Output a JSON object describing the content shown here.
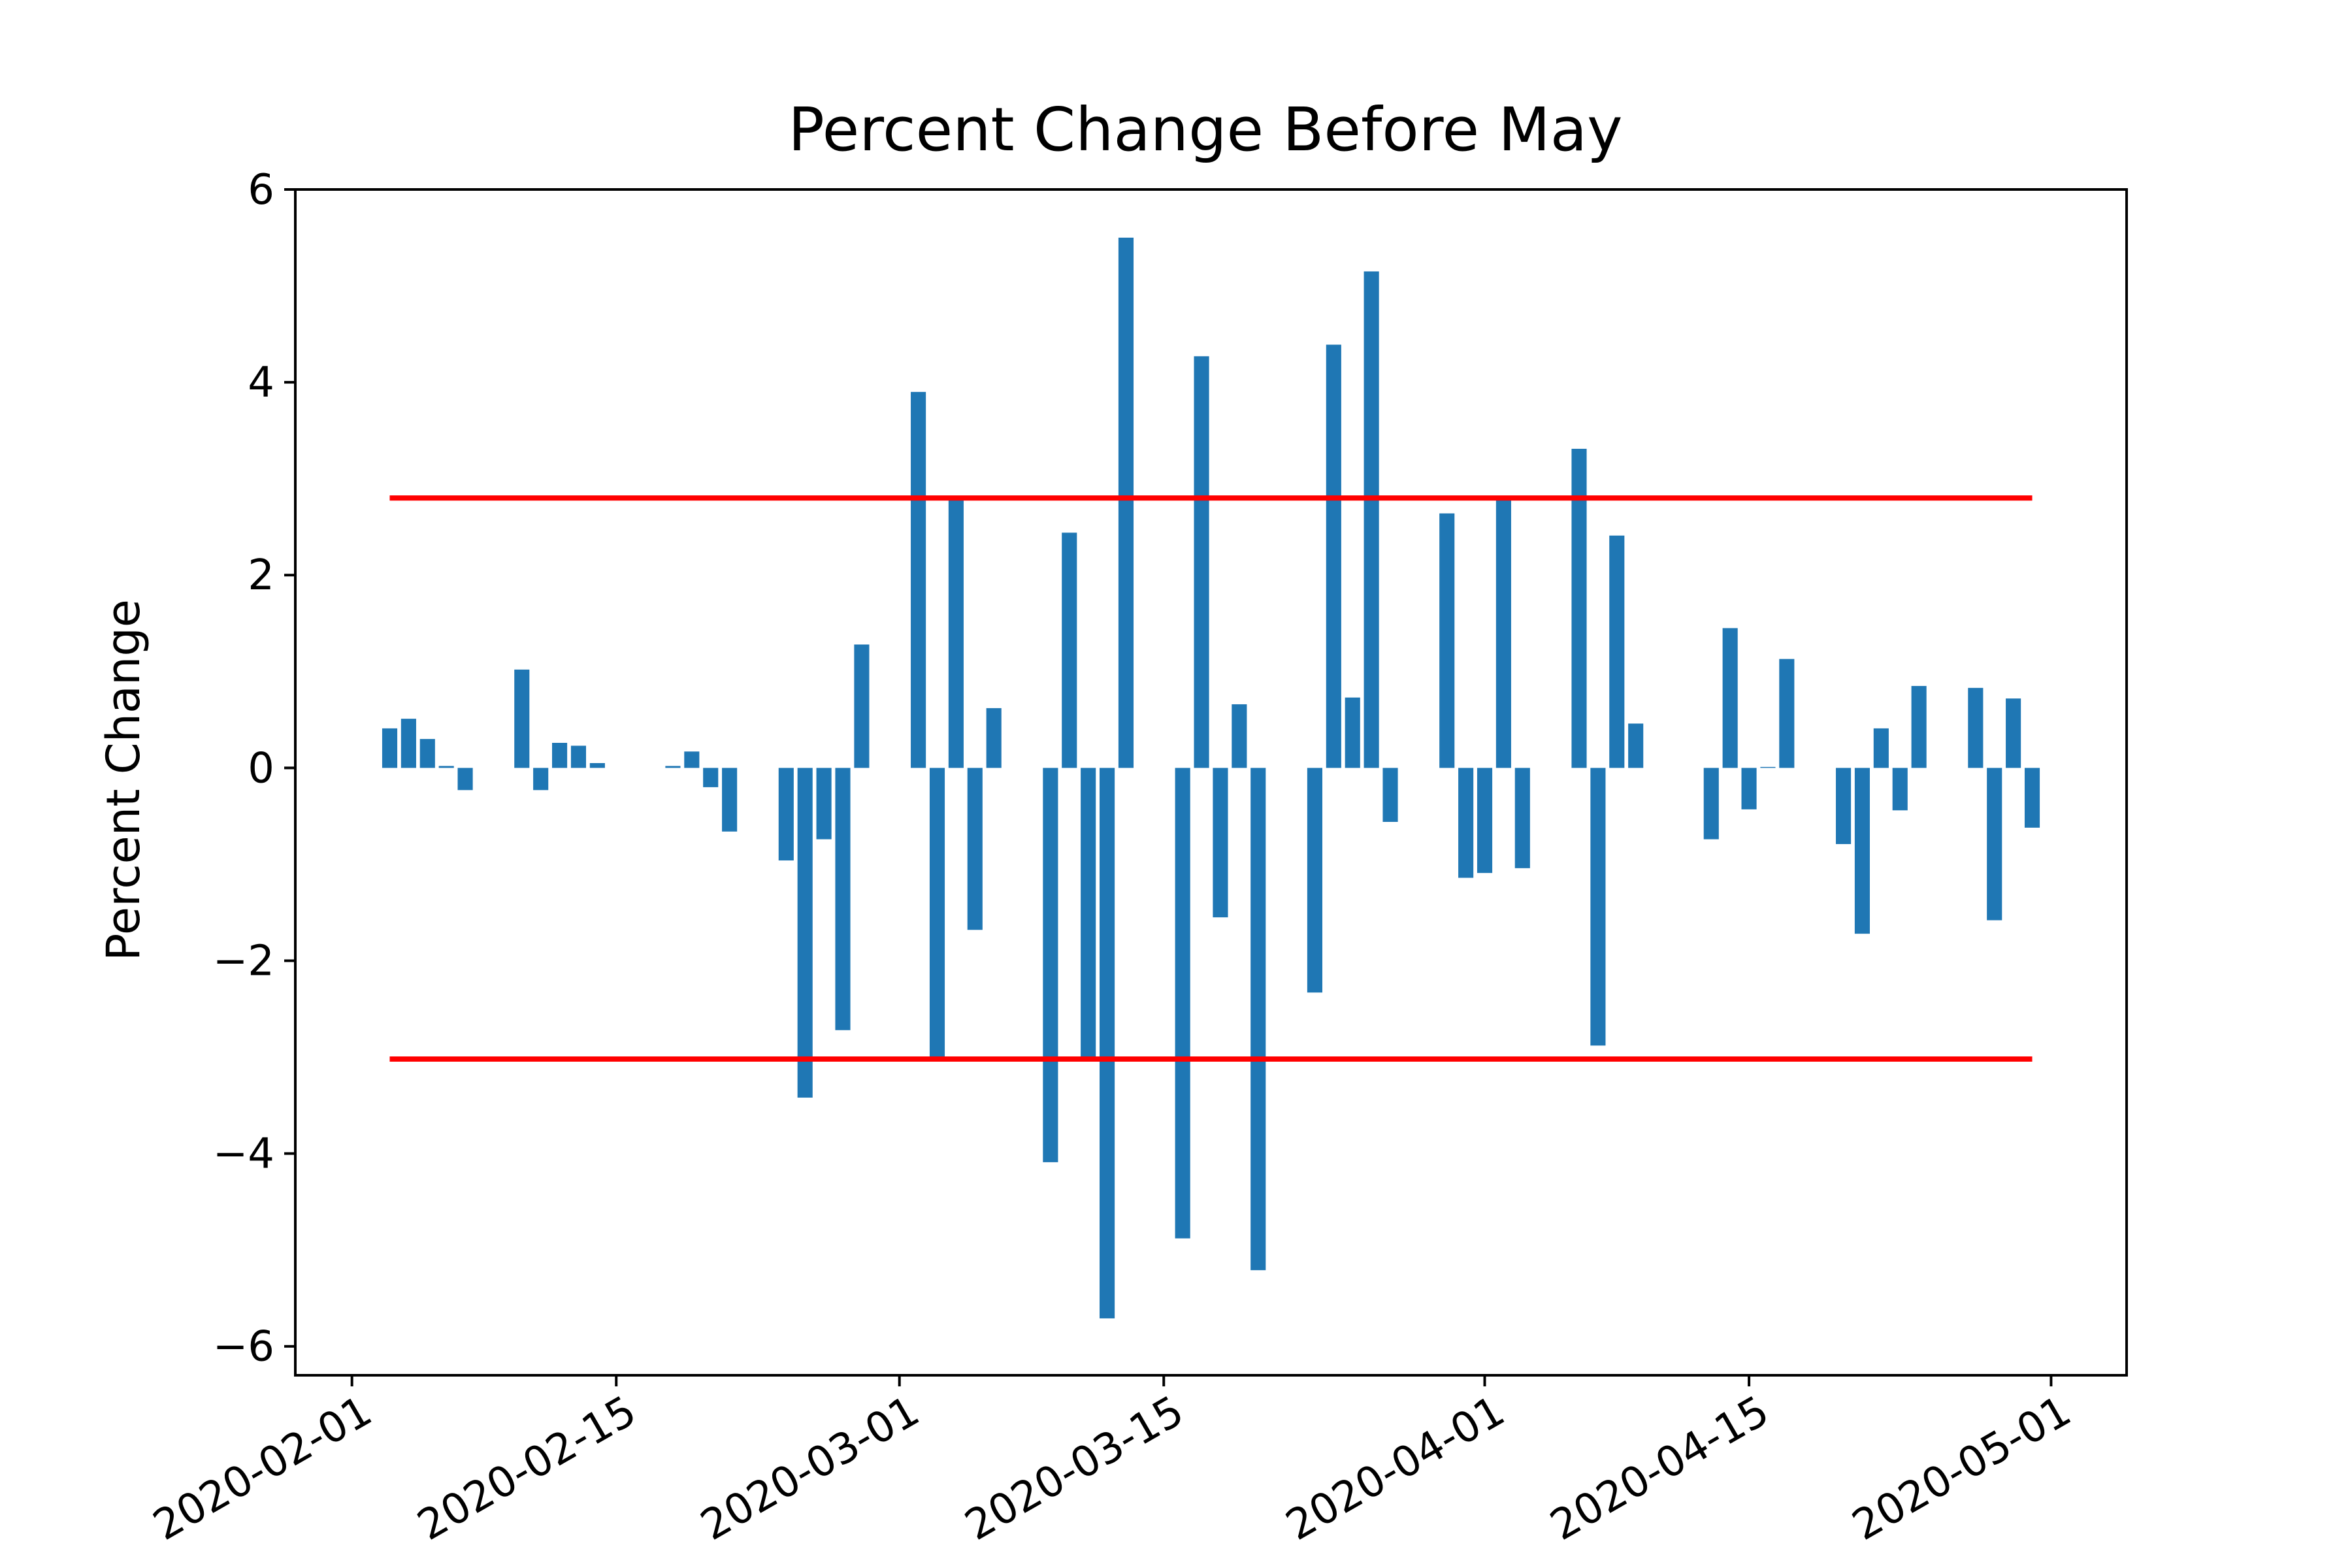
{
  "chart_data": {
    "type": "bar",
    "title": "Percent Change Before May",
    "xlabel": "",
    "ylabel": "Percent Change",
    "x_axis_type": "date",
    "xlim": [
      "2020-01-29",
      "2020-05-05"
    ],
    "ylim": [
      -6.3,
      6.0
    ],
    "yticks": [
      -6,
      -4,
      -2,
      0,
      2,
      4,
      6
    ],
    "ytick_labels": [
      "−6",
      "−4",
      "−2",
      "0",
      "2",
      "4",
      "6"
    ],
    "xticks": [
      "2020-02-01",
      "2020-02-15",
      "2020-03-01",
      "2020-03-15",
      "2020-04-01",
      "2020-04-15",
      "2020-05-01"
    ],
    "xtick_labels": [
      "2020-02-01",
      "2020-02-15",
      "2020-03-01",
      "2020-03-15",
      "2020-04-01",
      "2020-04-15",
      "2020-05-01"
    ],
    "grid": false,
    "colors": {
      "bars": "#1f77b4",
      "bands": "#ff0000",
      "frame": "#000000"
    },
    "dates": [
      "2020-02-03",
      "2020-02-04",
      "2020-02-05",
      "2020-02-06",
      "2020-02-07",
      "2020-02-10",
      "2020-02-11",
      "2020-02-12",
      "2020-02-13",
      "2020-02-14",
      "2020-02-18",
      "2020-02-19",
      "2020-02-20",
      "2020-02-21",
      "2020-02-24",
      "2020-02-25",
      "2020-02-26",
      "2020-02-27",
      "2020-02-28",
      "2020-03-02",
      "2020-03-03",
      "2020-03-04",
      "2020-03-05",
      "2020-03-06",
      "2020-03-09",
      "2020-03-10",
      "2020-03-11",
      "2020-03-12",
      "2020-03-13",
      "2020-03-16",
      "2020-03-17",
      "2020-03-18",
      "2020-03-19",
      "2020-03-20",
      "2020-03-23",
      "2020-03-24",
      "2020-03-25",
      "2020-03-26",
      "2020-03-27",
      "2020-03-30",
      "2020-03-31",
      "2020-04-01",
      "2020-04-02",
      "2020-04-03",
      "2020-04-06",
      "2020-04-07",
      "2020-04-08",
      "2020-04-09",
      "2020-04-13",
      "2020-04-14",
      "2020-04-15",
      "2020-04-16",
      "2020-04-17",
      "2020-04-20",
      "2020-04-21",
      "2020-04-22",
      "2020-04-23",
      "2020-04-24",
      "2020-04-27",
      "2020-04-28",
      "2020-04-29",
      "2020-04-30"
    ],
    "values": [
      0.41,
      0.51,
      0.3,
      0.02,
      -0.23,
      1.02,
      -0.23,
      0.26,
      0.23,
      0.05,
      0.02,
      0.17,
      -0.2,
      -0.66,
      -0.96,
      -3.42,
      -0.74,
      -2.72,
      1.28,
      3.9,
      -3.0,
      2.78,
      -1.68,
      0.62,
      -4.09,
      2.44,
      -3.0,
      -5.71,
      5.5,
      -4.88,
      4.27,
      -1.55,
      0.66,
      -5.21,
      -2.33,
      4.39,
      0.73,
      5.15,
      -0.56,
      2.64,
      -1.14,
      -1.09,
      2.78,
      -1.04,
      3.31,
      -2.88,
      2.41,
      0.46,
      -0.74,
      1.45,
      -0.43,
      0.01,
      1.13,
      -0.79,
      -1.72,
      0.41,
      -0.44,
      0.85,
      0.83,
      -1.58,
      0.72,
      -0.62
    ],
    "reference_lines": [
      {
        "y": 2.8,
        "x_start": "2020-02-03",
        "x_end": "2020-04-30",
        "color": "#ff0000"
      },
      {
        "y": -3.02,
        "x_start": "2020-02-03",
        "x_end": "2020-04-30",
        "color": "#ff0000"
      }
    ]
  }
}
